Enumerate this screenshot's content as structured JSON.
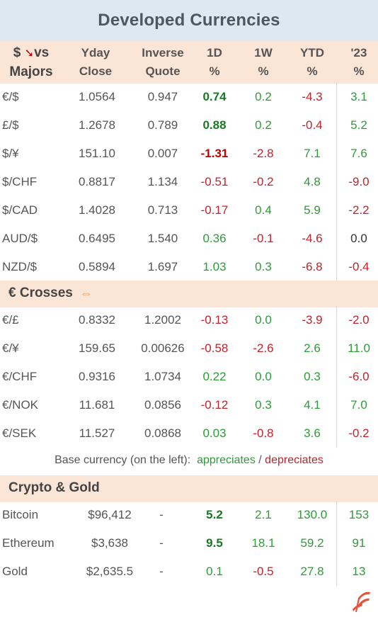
{
  "title": "Developed Currencies",
  "header": {
    "col1_line1": "$",
    "col1_arrow": "➘",
    "col1_line1b": "vs",
    "col1_line2": "Majors",
    "col2_line1": "Yday",
    "col2_line2": "Close",
    "col3_line1": "Inverse",
    "col3_line2": "Quote",
    "col4_line1": "1D",
    "col4_line2": "%",
    "col5_line1": "1W",
    "col5_line2": "%",
    "col6_line1": "YTD",
    "col6_line2": "%",
    "col7_line1": "'23",
    "col7_line2": "%"
  },
  "majors": [
    {
      "pair": "€/$",
      "close": "1.0564",
      "inverse": "0.947",
      "d1": "0.74",
      "w1": "0.2",
      "ytd": "-4.3",
      "y23": "3.1"
    },
    {
      "pair": "£/$",
      "close": "1.2678",
      "inverse": "0.789",
      "d1": "0.88",
      "w1": "0.2",
      "ytd": "-0.4",
      "y23": "5.2"
    },
    {
      "pair": "$/¥",
      "close": "151.10",
      "inverse": "0.007",
      "d1": "-1.31",
      "w1": "-2.8",
      "ytd": "7.1",
      "y23": "7.6"
    },
    {
      "pair": "$/CHF",
      "close": "0.8817",
      "inverse": "1.134",
      "d1": "-0.51",
      "w1": "-0.2",
      "ytd": "4.8",
      "y23": "-9.0"
    },
    {
      "pair": "$/CAD",
      "close": "1.4028",
      "inverse": "0.713",
      "d1": "-0.17",
      "w1": "0.4",
      "ytd": "5.9",
      "y23": "-2.2"
    },
    {
      "pair": "AUD/$",
      "close": "0.6495",
      "inverse": "1.540",
      "d1": "0.36",
      "w1": "-0.1",
      "ytd": "-4.6",
      "y23": "0.0"
    },
    {
      "pair": "NZD/$",
      "close": "0.5894",
      "inverse": "1.697",
      "d1": "1.03",
      "w1": "0.3",
      "ytd": "-6.8",
      "y23": "-0.4"
    }
  ],
  "crosses_title": "€ Crosses",
  "crosses_icon": "⇔",
  "crosses": [
    {
      "pair": "€/£",
      "close": "0.8332",
      "inverse": "1.2002",
      "d1": "-0.13",
      "w1": "0.0",
      "ytd": "-3.9",
      "y23": "-2.0"
    },
    {
      "pair": "€/¥",
      "close": "159.65",
      "inverse": "0.00626",
      "d1": "-0.58",
      "w1": "-2.6",
      "ytd": "2.6",
      "y23": "11.0"
    },
    {
      "pair": "€/CHF",
      "close": "0.9316",
      "inverse": "1.0734",
      "d1": "0.22",
      "w1": "0.0",
      "ytd": "0.3",
      "y23": "-6.0"
    },
    {
      "pair": "€/NOK",
      "close": "11.681",
      "inverse": "0.0856",
      "d1": "-0.12",
      "w1": "0.3",
      "ytd": "4.1",
      "y23": "7.0"
    },
    {
      "pair": "€/SEK",
      "close": "11.527",
      "inverse": "0.0868",
      "d1": "0.03",
      "w1": "-0.8",
      "ytd": "3.6",
      "y23": "-0.2"
    }
  ],
  "footnote": {
    "prefix": "Base currency (on the left):",
    "appreciates": "appreciates",
    "sep": "/",
    "depreciates": "depreciates"
  },
  "crypto_title": "Crypto & Gold",
  "crypto": [
    {
      "pair": "Bitcoin",
      "close": "$96,412",
      "inverse": "-",
      "d1": "5.2",
      "w1": "2.1",
      "ytd": "130.0",
      "y23": "153"
    },
    {
      "pair": "Ethereum",
      "close": "$3,638",
      "inverse": "-",
      "d1": "9.5",
      "w1": "18.1",
      "ytd": "59.2",
      "y23": "91"
    },
    {
      "pair": "Gold",
      "close": "$2,635.5",
      "inverse": "-",
      "d1": "0.1",
      "w1": "-0.5",
      "ytd": "27.8",
      "y23": "13"
    }
  ],
  "colors": {
    "positive": "#2e9b3a",
    "negative": "#c0232a",
    "header_band": "#fbe5d6",
    "title_band": "#dde8f1",
    "logo": "#e8513a"
  },
  "logo_icon": "stylized-flag-logo"
}
